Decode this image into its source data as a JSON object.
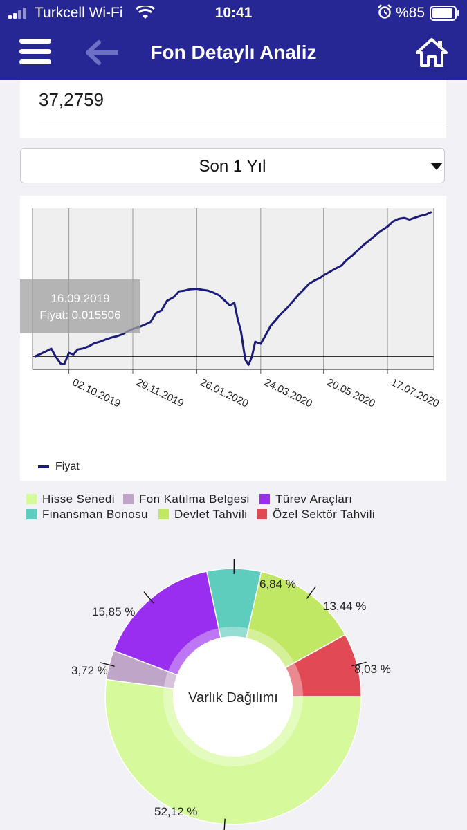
{
  "status_bar": {
    "carrier": "Turkcell Wi-Fi",
    "time": "10:41",
    "battery": "%85"
  },
  "nav": {
    "title": "Fon Detaylı Analiz"
  },
  "info_card": {
    "value": "37,2759"
  },
  "period_select": {
    "selected": "Son 1 Yıl"
  },
  "chart_data": [
    {
      "type": "line",
      "x_tick_labels": [
        "02.10.2019",
        "29.11.2019",
        "26.01.2020",
        "24.03.2020",
        "20.05.2020",
        "17.07.2020"
      ],
      "series": [
        {
          "name": "Fiyat",
          "color": "#1b1b7a",
          "points": [
            [
              "01.09.2019",
              0.0152
            ],
            [
              "05.09.2019",
              0.01528
            ],
            [
              "10.09.2019",
              0.01538
            ],
            [
              "16.09.2019",
              0.01551
            ],
            [
              "20.09.2019",
              0.0152
            ],
            [
              "25.09.2019",
              0.0149
            ],
            [
              "28.09.2019",
              0.01492
            ],
            [
              "02.10.2019",
              0.01535
            ],
            [
              "06.10.2019",
              0.01528
            ],
            [
              "10.10.2019",
              0.01548
            ],
            [
              "15.10.2019",
              0.01552
            ],
            [
              "20.10.2019",
              0.0156
            ],
            [
              "25.10.2019",
              0.01572
            ],
            [
              "30.10.2019",
              0.01578
            ],
            [
              "05.11.2019",
              0.01588
            ],
            [
              "10.11.2019",
              0.01595
            ],
            [
              "15.11.2019",
              0.016
            ],
            [
              "20.11.2019",
              0.01608
            ],
            [
              "25.11.2019",
              0.0162
            ],
            [
              "29.11.2019",
              0.01628
            ],
            [
              "05.12.2019",
              0.01636
            ],
            [
              "10.12.2019",
              0.01645
            ],
            [
              "15.12.2019",
              0.01655
            ],
            [
              "20.12.2019",
              0.0169
            ],
            [
              "25.12.2019",
              0.017
            ],
            [
              "30.12.2019",
              0.01738
            ],
            [
              "05.01.2020",
              0.01752
            ],
            [
              "10.01.2020",
              0.01775
            ],
            [
              "15.01.2020",
              0.01778
            ],
            [
              "20.01.2020",
              0.01783
            ],
            [
              "26.01.2020",
              0.01785
            ],
            [
              "31.01.2020",
              0.01781
            ],
            [
              "05.02.2020",
              0.01778
            ],
            [
              "10.02.2020",
              0.0177
            ],
            [
              "15.02.2020",
              0.0176
            ],
            [
              "20.02.2020",
              0.0174
            ],
            [
              "25.02.2020",
              0.0172
            ],
            [
              "29.02.2020",
              0.0173
            ],
            [
              "03.03.2020",
              0.01668
            ],
            [
              "06.03.2020",
              0.0162
            ],
            [
              "10.03.2020",
              0.01508
            ],
            [
              "13.03.2020",
              0.01488
            ],
            [
              "16.03.2020",
              0.0152
            ],
            [
              "19.03.2020",
              0.01578
            ],
            [
              "24.03.2020",
              0.0157
            ],
            [
              "28.03.2020",
              0.016
            ],
            [
              "02.04.2020",
              0.0164
            ],
            [
              "07.04.2020",
              0.01665
            ],
            [
              "12.04.2020",
              0.0169
            ],
            [
              "17.04.2020",
              0.0171
            ],
            [
              "22.04.2020",
              0.01735
            ],
            [
              "27.04.2020",
              0.0176
            ],
            [
              "02.05.2020",
              0.01782
            ],
            [
              "07.05.2020",
              0.01805
            ],
            [
              "12.05.2020",
              0.01818
            ],
            [
              "17.05.2020",
              0.01828
            ],
            [
              "20.05.2020",
              0.01838
            ],
            [
              "25.05.2020",
              0.0185
            ],
            [
              "30.05.2020",
              0.01862
            ],
            [
              "05.06.2020",
              0.01875
            ],
            [
              "10.06.2020",
              0.01898
            ],
            [
              "15.06.2020",
              0.01915
            ],
            [
              "20.06.2020",
              0.01935
            ],
            [
              "25.06.2020",
              0.01955
            ],
            [
              "30.06.2020",
              0.01972
            ],
            [
              "05.07.2020",
              0.0199
            ],
            [
              "10.07.2020",
              0.02008
            ],
            [
              "17.07.2020",
              0.02028
            ],
            [
              "22.07.2020",
              0.02048
            ],
            [
              "27.07.2020",
              0.02058
            ],
            [
              "01.08.2020",
              0.02062
            ],
            [
              "06.08.2020",
              0.02055
            ],
            [
              "11.08.2020",
              0.02063
            ],
            [
              "16.08.2020",
              0.0207
            ],
            [
              "21.08.2020",
              0.02075
            ],
            [
              "26.08.2020",
              0.02085
            ]
          ]
        }
      ],
      "legend": "bottom-left",
      "grid": true,
      "tooltip": {
        "date": "16.09.2019",
        "text": "Fiyat: 0.015506"
      }
    },
    {
      "type": "pie",
      "donut": true,
      "center_label": "Varlık Dağılımı",
      "legend": "top",
      "slices": [
        {
          "name": "Hisse Senedi",
          "value": 52.12,
          "label": "52,12 %",
          "color": "#d6f99c"
        },
        {
          "name": "Fon Katılma Belgesi",
          "value": 3.72,
          "label": "3,72 %",
          "color": "#bfa5c8"
        },
        {
          "name": "Türev Araçları",
          "value": 15.85,
          "label": "15,85 %",
          "color": "#9a2ef0"
        },
        {
          "name": "Finansman Bonosu",
          "value": 6.84,
          "label": "6,84 %",
          "color": "#5fcdbe"
        },
        {
          "name": "Devlet Tahvili",
          "value": 13.44,
          "label": "13,44 %",
          "color": "#c1e865"
        },
        {
          "name": "Özel Sektör Tahvili",
          "value": 8.03,
          "label": "8,03 %",
          "color": "#e14a55"
        }
      ]
    }
  ]
}
